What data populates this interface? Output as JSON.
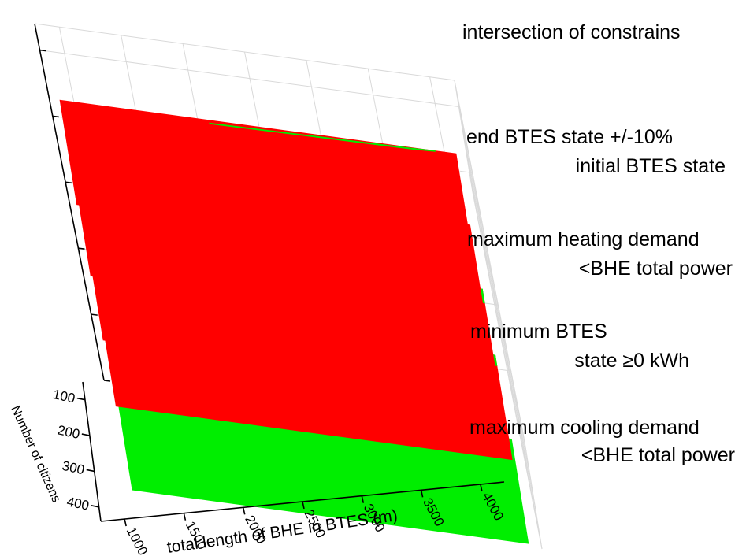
{
  "chart_data": {
    "type": "3d-stacked-planes",
    "xlabel": "total length of BHE in BTES (m)",
    "ylabel": "Number of citizens",
    "x_ticks": [
      1000,
      1500,
      2000,
      2500,
      3000,
      3500,
      4000
    ],
    "y_ticks": [
      100,
      200,
      300,
      400
    ],
    "colors": {
      "feasible": "#00ee00",
      "infeasible": "#ff0000"
    },
    "layers": [
      {
        "label_lines": [
          "maximum cooling demand",
          "<BHE total power"
        ],
        "predominant": "feasible"
      },
      {
        "label_lines": [
          "minimum BTES",
          "state ≥0 kWh"
        ],
        "predominant": "infeasible"
      },
      {
        "label_lines": [
          "maximum heating demand",
          "<BHE total power"
        ],
        "predominant": "infeasible"
      },
      {
        "label_lines": [
          "end BTES state +/-10%",
          "initial BTES state"
        ],
        "predominant": "infeasible"
      },
      {
        "label_lines": [
          "intersection of constrains"
        ],
        "predominant": "infeasible"
      }
    ]
  }
}
